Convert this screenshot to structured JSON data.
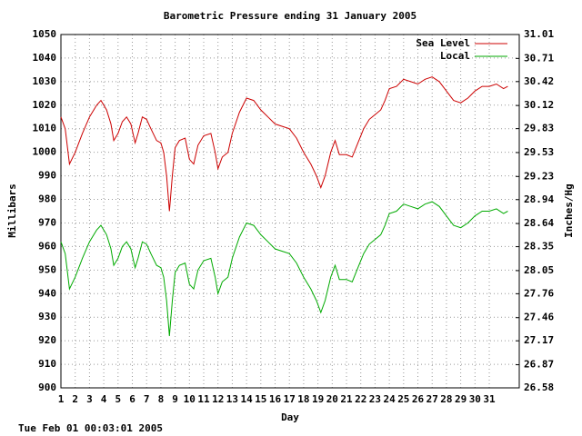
{
  "chart_data": {
    "type": "line",
    "title": "Barometric Pressure ending 31 January 2005",
    "xlabel": "Day",
    "ylabel": "Millibars",
    "y2label": "Inches/Hg",
    "timestamp": "Tue Feb 01 00:03:01 2005",
    "grid": true,
    "legend": "top-right",
    "xlim": [
      1,
      33.1
    ],
    "xticks": [
      1,
      2,
      3,
      4,
      5,
      6,
      7,
      8,
      9,
      10,
      11,
      12,
      13,
      14,
      15,
      16,
      17,
      18,
      19,
      20,
      21,
      22,
      23,
      24,
      25,
      26,
      27,
      28,
      29,
      30,
      31
    ],
    "ylim": [
      900,
      1050
    ],
    "yticks": [
      900,
      910,
      920,
      930,
      940,
      950,
      960,
      970,
      980,
      990,
      1000,
      1010,
      1020,
      1030,
      1040,
      1050
    ],
    "y2lim": [
      26.58,
      31.01
    ],
    "y2ticks": [
      26.58,
      26.87,
      27.17,
      27.46,
      27.76,
      28.05,
      28.35,
      28.64,
      28.94,
      29.23,
      29.53,
      29.83,
      30.12,
      30.42,
      30.71,
      31.01
    ],
    "x": [
      1.0,
      1.3,
      1.6,
      2.0,
      2.5,
      3.0,
      3.5,
      3.8,
      4.2,
      4.5,
      4.7,
      5.0,
      5.3,
      5.6,
      5.9,
      6.2,
      6.4,
      6.7,
      7.0,
      7.3,
      7.7,
      8.0,
      8.2,
      8.4,
      8.6,
      8.8,
      9.0,
      9.3,
      9.7,
      10.0,
      10.3,
      10.6,
      11.0,
      11.5,
      11.8,
      12.0,
      12.3,
      12.7,
      13.0,
      13.5,
      14.0,
      14.5,
      15.0,
      15.5,
      16.0,
      16.5,
      17.0,
      17.5,
      18.0,
      18.5,
      18.9,
      19.2,
      19.5,
      19.9,
      20.2,
      20.5,
      21.0,
      21.4,
      21.8,
      22.2,
      22.6,
      23.0,
      23.4,
      23.7,
      24.0,
      24.5,
      25.0,
      25.5,
      26.0,
      26.5,
      27.0,
      27.5,
      28.0,
      28.5,
      29.0,
      29.5,
      30.0,
      30.5,
      31.0,
      31.5,
      32.0,
      32.3
    ],
    "series": [
      {
        "name": "Sea Level",
        "color": "#cc0000",
        "values": [
          1015,
          1010,
          995,
          1000,
          1008,
          1015,
          1020,
          1022,
          1018,
          1012,
          1005,
          1008,
          1013,
          1015,
          1012,
          1004,
          1008,
          1015,
          1014,
          1010,
          1005,
          1004,
          1000,
          990,
          975,
          990,
          1002,
          1005,
          1006,
          997,
          995,
          1003,
          1007,
          1008,
          1000,
          993,
          998,
          1000,
          1008,
          1017,
          1023,
          1022,
          1018,
          1015,
          1012,
          1011,
          1010,
          1006,
          1000,
          995,
          990,
          985,
          990,
          1000,
          1005,
          999,
          999,
          998,
          1004,
          1010,
          1014,
          1016,
          1018,
          1022,
          1027,
          1028,
          1031,
          1030,
          1029,
          1031,
          1032,
          1030,
          1026,
          1022,
          1021,
          1023,
          1026,
          1028,
          1028,
          1029,
          1027,
          1028
        ]
      },
      {
        "name": "Local",
        "color": "#00aa00",
        "values": [
          962,
          957,
          942,
          947,
          955,
          962,
          967,
          969,
          965,
          959,
          952,
          955,
          960,
          962,
          959,
          951,
          955,
          962,
          961,
          957,
          952,
          951,
          947,
          937,
          922,
          937,
          949,
          952,
          953,
          944,
          942,
          950,
          954,
          955,
          947,
          940,
          945,
          947,
          955,
          964,
          970,
          969,
          965,
          962,
          959,
          958,
          957,
          953,
          947,
          942,
          937,
          932,
          937,
          947,
          952,
          946,
          946,
          945,
          951,
          957,
          961,
          963,
          965,
          969,
          974,
          975,
          978,
          977,
          976,
          978,
          979,
          977,
          973,
          969,
          968,
          970,
          973,
          975,
          975,
          976,
          974,
          975
        ]
      }
    ]
  }
}
